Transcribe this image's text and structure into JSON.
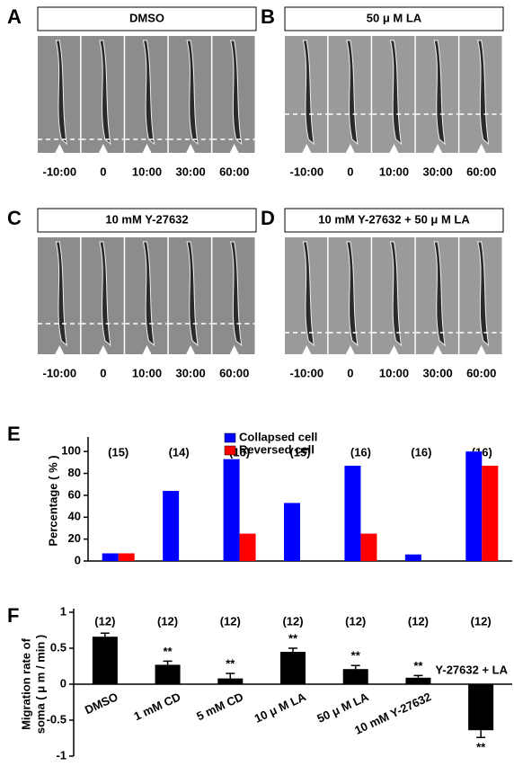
{
  "figure": {
    "panel_letters": [
      "A",
      "B",
      "C",
      "D",
      "E",
      "F"
    ]
  },
  "panels": [
    {
      "title": "DMSO",
      "times": [
        "-10:00",
        "0",
        "10:00",
        "30:00",
        "60:00"
      ]
    },
    {
      "title": "50 μ M  LA",
      "times": [
        "-10:00",
        "0",
        "10:00",
        "30:00",
        "60:00"
      ]
    },
    {
      "title": "10 mM Y-27632",
      "times": [
        "-10:00",
        "0",
        "10:00",
        "30:00",
        "60:00"
      ]
    },
    {
      "title": "10 mM Y-27632 + 50 μ M  LA",
      "times": [
        "-10:00",
        "0",
        "10:00",
        "30:00",
        "60:00"
      ]
    }
  ],
  "chart_data": [
    {
      "type": "bar",
      "ylabel": "Percentage ( % )",
      "series": [
        {
          "name": "Collapsed cell",
          "color": "#0000ff",
          "values": [
            7,
            64,
            93,
            53,
            87,
            6,
            100
          ]
        },
        {
          "name": "Reversed cell",
          "color": "#ff0000",
          "values": [
            7,
            0,
            25,
            0,
            25,
            0,
            87
          ]
        }
      ],
      "annotations": [
        "(15)",
        "(14)",
        "(16)",
        "(15)",
        "(16)",
        "(16)",
        "(16)"
      ],
      "ylim": [
        0,
        110
      ],
      "yticks": [
        0,
        20,
        40,
        60,
        80,
        100
      ],
      "legend": "top"
    },
    {
      "type": "bar",
      "ylabel": [
        "Migration rate of",
        "soma ( μ m / min )"
      ],
      "categories": [
        "DMSO",
        "1 mM CD",
        "5 mM CD",
        "10 μ M  LA",
        "50 μ M  LA",
        "10 mM Y-27632",
        "Y-27632 + LA"
      ],
      "values": [
        0.66,
        0.27,
        0.08,
        0.45,
        0.21,
        0.09,
        -0.64
      ],
      "errors": [
        0.05,
        0.05,
        0.07,
        0.05,
        0.05,
        0.03,
        0.1
      ],
      "significance": [
        null,
        "**",
        "**",
        "**",
        "**",
        "**",
        "**"
      ],
      "annotations": [
        "(12)",
        "(12)",
        "(12)",
        "(12)",
        "(12)",
        "(12)",
        "(12)"
      ],
      "color": "#000000",
      "ylim": [
        -1,
        1
      ],
      "yticks": [
        -1,
        -0.5,
        0,
        0.5,
        1
      ]
    }
  ]
}
